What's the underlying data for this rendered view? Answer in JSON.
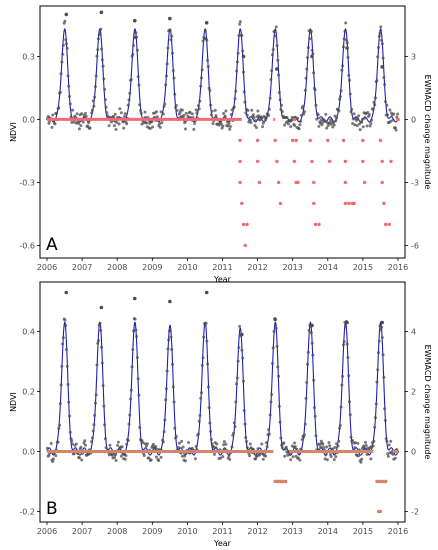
{
  "colors": {
    "ndvi_points": "#4d4d4d",
    "fit_line": "#1f1fb4",
    "change_A": "#f26b6b",
    "change_B": "#d4856a",
    "frame": "#000000"
  },
  "chart_data": [
    {
      "type": "scatter",
      "panel_label": "A",
      "xlabel": "Year",
      "ylabel": "NDVI",
      "y2label": "EWMACD change magnitude",
      "x_ticks": [
        "2006",
        "2007",
        "2008",
        "2009",
        "2010",
        "2011",
        "2012",
        "2013",
        "2014",
        "2015",
        "2016"
      ],
      "xlim": [
        2005.8,
        2016.2
      ],
      "ylim": [
        -0.66,
        0.54
      ],
      "y_ticks": [
        -0.6,
        -0.3,
        0.0,
        0.3
      ],
      "y_tick_labels": [
        "-0.6",
        "-0.3",
        "0.0",
        "0.3"
      ],
      "y2lim": [
        -6.6,
        5.4
      ],
      "y2_ticks": [
        -6,
        -3,
        0,
        3
      ],
      "y2_tick_labels": [
        "-6",
        "-3",
        "0",
        "3"
      ],
      "grid": false,
      "ndvi_fit": {
        "start": 2006.0,
        "end": 2016.0,
        "baseline": 0.0,
        "peak_phase": 0.5,
        "peaks": [
          0.43,
          0.43,
          0.43,
          0.43,
          0.43,
          0.43,
          0.43,
          0.43,
          0.43,
          0.43
        ]
      },
      "ndvi_point_scatter": 0.08,
      "ndvi_peak_points": [
        {
          "x": 2006.55,
          "y": 0.5
        },
        {
          "x": 2007.55,
          "y": 0.51
        },
        {
          "x": 2008.5,
          "y": 0.47
        },
        {
          "x": 2009.5,
          "y": 0.48
        },
        {
          "x": 2010.55,
          "y": 0.46
        },
        {
          "x": 2011.6,
          "y": 0.3
        },
        {
          "x": 2012.55,
          "y": 0.24
        },
        {
          "x": 2013.55,
          "y": 0.3
        },
        {
          "x": 2014.55,
          "y": 0.34
        },
        {
          "x": 2015.55,
          "y": 0.25
        }
      ],
      "change_segments_zero": [
        {
          "x0": 2006.0,
          "x1": 2011.55
        },
        {
          "x0": 2012.45,
          "x1": 2012.5
        },
        {
          "x0": 2013.0,
          "x1": 2013.1
        },
        {
          "x0": 2015.95,
          "x1": 2016.05
        }
      ],
      "change_points": [
        {
          "x": 2011.5,
          "y": -1.0
        },
        {
          "x": 2011.5,
          "y": -2.0
        },
        {
          "x": 2011.5,
          "y": -3.0
        },
        {
          "x": 2011.55,
          "y": -4.0
        },
        {
          "x": 2011.6,
          "y": -5.0
        },
        {
          "x": 2011.7,
          "y": -5.0
        },
        {
          "x": 2011.65,
          "y": -6.0
        },
        {
          "x": 2012.0,
          "y": -1.0
        },
        {
          "x": 2012.0,
          "y": -2.0
        },
        {
          "x": 2012.05,
          "y": -3.0
        },
        {
          "x": 2012.5,
          "y": -1.0
        },
        {
          "x": 2012.55,
          "y": -2.0
        },
        {
          "x": 2012.6,
          "y": -3.0
        },
        {
          "x": 2012.65,
          "y": -4.0
        },
        {
          "x": 2013.0,
          "y": -1.0
        },
        {
          "x": 2013.1,
          "y": -1.0
        },
        {
          "x": 2013.05,
          "y": -2.0
        },
        {
          "x": 2013.1,
          "y": -3.0
        },
        {
          "x": 2013.15,
          "y": -3.0
        },
        {
          "x": 2013.5,
          "y": -1.0
        },
        {
          "x": 2013.55,
          "y": -2.0
        },
        {
          "x": 2013.6,
          "y": -3.0
        },
        {
          "x": 2013.6,
          "y": -4.0
        },
        {
          "x": 2013.65,
          "y": -5.0
        },
        {
          "x": 2013.75,
          "y": -5.0
        },
        {
          "x": 2014.0,
          "y": -1.0
        },
        {
          "x": 2014.05,
          "y": -2.0
        },
        {
          "x": 2014.45,
          "y": -1.0
        },
        {
          "x": 2014.5,
          "y": -2.0
        },
        {
          "x": 2014.5,
          "y": -3.0
        },
        {
          "x": 2014.5,
          "y": -4.0
        },
        {
          "x": 2014.6,
          "y": -4.0
        },
        {
          "x": 2014.7,
          "y": -4.0
        },
        {
          "x": 2014.75,
          "y": -4.0
        },
        {
          "x": 2015.0,
          "y": -1.0
        },
        {
          "x": 2015.0,
          "y": -2.0
        },
        {
          "x": 2015.05,
          "y": -3.0
        },
        {
          "x": 2015.5,
          "y": -1.0
        },
        {
          "x": 2015.55,
          "y": -2.0
        },
        {
          "x": 2015.55,
          "y": -3.0
        },
        {
          "x": 2015.6,
          "y": -4.0
        },
        {
          "x": 2015.65,
          "y": -5.0
        },
        {
          "x": 2015.75,
          "y": -5.0
        },
        {
          "x": 2015.8,
          "y": -2.0
        }
      ]
    },
    {
      "type": "scatter",
      "panel_label": "B",
      "xlabel": "Year",
      "ylabel": "NDVI",
      "y2label": "EWMACD change magnitude",
      "x_ticks": [
        "2006",
        "2007",
        "2008",
        "2009",
        "2010",
        "2011",
        "2012",
        "2013",
        "2014",
        "2015",
        "2016"
      ],
      "xlim": [
        2005.8,
        2016.2
      ],
      "ylim": [
        -0.235,
        0.565
      ],
      "y_ticks": [
        -0.2,
        0.0,
        0.2,
        0.4
      ],
      "y_tick_labels": [
        "-0.2",
        "0.0",
        "0.2",
        "0.4"
      ],
      "y2lim": [
        -2.35,
        5.65
      ],
      "y2_ticks": [
        -2,
        0,
        2,
        4
      ],
      "y2_tick_labels": [
        "-2",
        "0",
        "2",
        "4"
      ],
      "grid": false,
      "ndvi_fit": {
        "start": 2006.0,
        "end": 2016.0,
        "baseline": 0.0,
        "peak_phase": 0.5,
        "peaks": [
          0.43,
          0.43,
          0.43,
          0.42,
          0.43,
          0.41,
          0.43,
          0.43,
          0.43,
          0.43
        ]
      },
      "ndvi_point_scatter": 0.05,
      "ndvi_peak_points": [
        {
          "x": 2006.55,
          "y": 0.53
        },
        {
          "x": 2007.55,
          "y": 0.48
        },
        {
          "x": 2008.5,
          "y": 0.51
        },
        {
          "x": 2009.5,
          "y": 0.5
        },
        {
          "x": 2010.55,
          "y": 0.53
        },
        {
          "x": 2011.55,
          "y": 0.39
        },
        {
          "x": 2012.5,
          "y": 0.44
        },
        {
          "x": 2013.55,
          "y": 0.42
        },
        {
          "x": 2014.55,
          "y": 0.43
        },
        {
          "x": 2015.55,
          "y": 0.43
        }
      ],
      "change_segments_zero": [
        {
          "x0": 2006.0,
          "x1": 2012.45
        },
        {
          "x0": 2012.9,
          "x1": 2015.3
        },
        {
          "x0": 2015.85,
          "x1": 2016.0
        }
      ],
      "change_points": [
        {
          "x": 2012.5,
          "y": -1.0
        },
        {
          "x": 2012.55,
          "y": -1.0
        },
        {
          "x": 2012.6,
          "y": -1.0
        },
        {
          "x": 2012.65,
          "y": -1.0
        },
        {
          "x": 2012.7,
          "y": -1.0
        },
        {
          "x": 2012.75,
          "y": -1.0
        },
        {
          "x": 2012.8,
          "y": -1.0
        },
        {
          "x": 2015.4,
          "y": -1.0
        },
        {
          "x": 2015.45,
          "y": -1.0
        },
        {
          "x": 2015.5,
          "y": -1.0
        },
        {
          "x": 2015.55,
          "y": -1.0
        },
        {
          "x": 2015.6,
          "y": -1.0
        },
        {
          "x": 2015.65,
          "y": -1.0
        },
        {
          "x": 2015.45,
          "y": -2.0
        },
        {
          "x": 2015.5,
          "y": -2.0
        }
      ]
    }
  ]
}
